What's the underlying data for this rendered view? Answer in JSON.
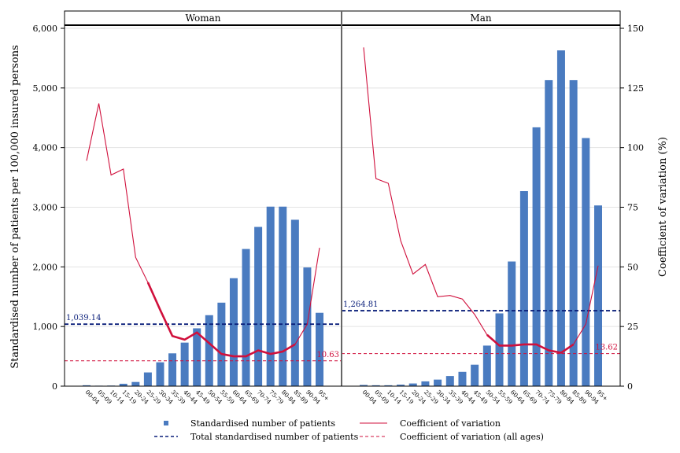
{
  "chart_data": {
    "type": "bar+line",
    "y_left_label": "Standardised number of patients per 100,000 insured persons",
    "y_right_label": "Coefficient of variation (%)",
    "y_left_ticks": [
      "0",
      "1,000",
      "2,000",
      "3,000",
      "4,000",
      "5,000",
      "6,000"
    ],
    "y_left_range": [
      0,
      6000
    ],
    "y_right_ticks": [
      "0",
      "25",
      "50",
      "75",
      "100",
      "125",
      "150"
    ],
    "y_right_range": [
      0,
      150
    ],
    "categories": [
      "00-04",
      "05-09",
      "10-14",
      "15-19",
      "20-24",
      "25-29",
      "30-34",
      "35-39",
      "40-44",
      "45-49",
      "50-54",
      "55-59",
      "60-64",
      "65-69",
      "70-74",
      "75-79",
      "80-84",
      "85-89",
      "90-94",
      "95+"
    ],
    "panels": [
      {
        "title": "Woman",
        "patients": [
          15,
          8,
          10,
          40,
          70,
          230,
          400,
          550,
          730,
          970,
          1190,
          1400,
          1810,
          2300,
          2670,
          3010,
          3010,
          2790,
          1990,
          1230
        ],
        "cv": [
          94.5,
          118.5,
          88.5,
          91,
          54,
          43.5,
          32,
          21,
          19.5,
          22.5,
          18,
          13.5,
          12.5,
          12.5,
          15,
          13.5,
          14.5,
          17.5,
          26,
          58
        ],
        "total_patients": 1039.14,
        "total_patients_label": "1,039.14",
        "cv_all_ages": 10.63,
        "cv_all_ages_label": "10.63"
      },
      {
        "title": "Man",
        "patients": [
          20,
          15,
          15,
          25,
          45,
          80,
          110,
          170,
          240,
          360,
          680,
          1220,
          2090,
          3270,
          4340,
          5130,
          5630,
          5130,
          4160,
          3030
        ],
        "cv": [
          142,
          87,
          85,
          61,
          47,
          51,
          37.5,
          38,
          36.5,
          30,
          21.5,
          17,
          17,
          17.5,
          17.5,
          15,
          14,
          17.5,
          26,
          50.5
        ],
        "total_patients": 1264.81,
        "total_patients_label": "1,264.81",
        "cv_all_ages": 13.62,
        "cv_all_ages_label": "13.62"
      }
    ],
    "legend": {
      "bars": "Standardised number of patients",
      "cv_line": "Coefficient of variation",
      "total_line": "Total standardised number of patients",
      "cv_all_line": "Coefficient of variation (all ages)"
    },
    "colors": {
      "bar": "#4a7bc0",
      "cv_line": "#d0103c",
      "total_line": "#0a1f7a",
      "cv_all_line": "#d0103c",
      "grid": "#e3e3e3"
    }
  }
}
